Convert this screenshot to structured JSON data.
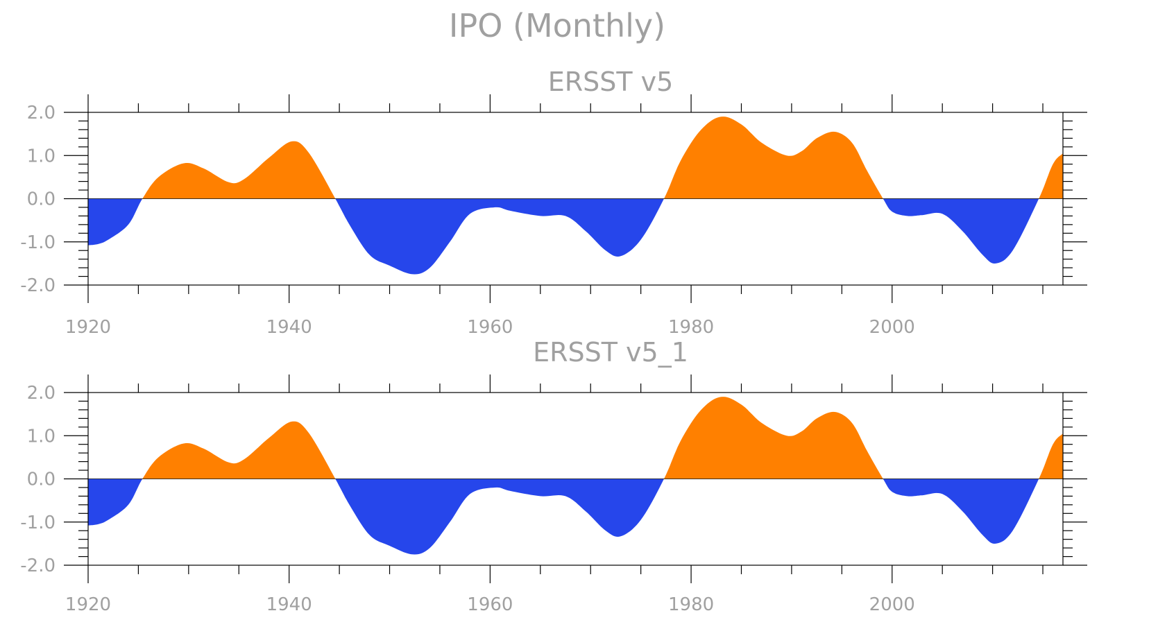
{
  "figure": {
    "title": "IPO (Monthly)"
  },
  "colors": {
    "positive": "#ff8000",
    "negative": "#2646eb",
    "frame": "#000000",
    "text": "#a0a0a0"
  },
  "chart_data": [
    {
      "type": "area",
      "title": "ERSST v5",
      "xlim": [
        1920,
        2017
      ],
      "ylim": [
        -2.0,
        2.0
      ],
      "xticks": [
        1920,
        1940,
        1960,
        1980,
        2000
      ],
      "xtick_labels": [
        "1920",
        "1940",
        "1960",
        "1980",
        "2000"
      ],
      "yticks": [
        2.0,
        1.0,
        0.0,
        -1.0,
        -2.0
      ],
      "ytick_labels": [
        "2.0",
        "1.0",
        "0.0",
        "-1.0",
        "-2.0"
      ],
      "grid": false,
      "fill": "positive orange / negative blue about 0",
      "x": [
        1920,
        1921,
        1922,
        1924,
        1925.4,
        1927,
        1929.5,
        1931.5,
        1934,
        1935.5,
        1938,
        1940.3,
        1942,
        1944.6,
        1946,
        1948,
        1950,
        1952.3,
        1954,
        1956,
        1958,
        1960.5,
        1962,
        1965,
        1967.5,
        1969.5,
        1971.5,
        1973,
        1975,
        1977.3,
        1979,
        1981,
        1983,
        1985,
        1987,
        1989.5,
        1991,
        1992.5,
        1994.3,
        1996,
        1997.5,
        1999.1,
        2000,
        2001.5,
        2003,
        2005,
        2007,
        2009,
        2010.3,
        2012,
        2014.6,
        2016,
        2017
      ],
      "y": [
        -1.08,
        -1.05,
        -0.95,
        -0.6,
        0.0,
        0.5,
        0.82,
        0.7,
        0.38,
        0.45,
        0.95,
        1.33,
        1.05,
        0.0,
        -0.6,
        -1.3,
        -1.55,
        -1.75,
        -1.6,
        -1.0,
        -0.35,
        -0.2,
        -0.28,
        -0.4,
        -0.4,
        -0.75,
        -1.2,
        -1.33,
        -0.95,
        0.0,
        0.9,
        1.6,
        1.9,
        1.72,
        1.3,
        1.0,
        1.1,
        1.4,
        1.55,
        1.3,
        0.65,
        0.0,
        -0.3,
        -0.4,
        -0.38,
        -0.35,
        -0.75,
        -1.3,
        -1.5,
        -1.2,
        0.0,
        0.8,
        1.05
      ]
    },
    {
      "type": "area",
      "title": "ERSST v5_1",
      "xlim": [
        1920,
        2017
      ],
      "ylim": [
        -2.0,
        2.0
      ],
      "xticks": [
        1920,
        1940,
        1960,
        1980,
        2000
      ],
      "xtick_labels": [
        "1920",
        "1940",
        "1960",
        "1980",
        "2000"
      ],
      "yticks": [
        2.0,
        1.0,
        0.0,
        -1.0,
        -2.0
      ],
      "ytick_labels": [
        "2.0",
        "1.0",
        "0.0",
        "-1.0",
        "-2.0"
      ],
      "grid": false,
      "fill": "positive orange / negative blue about 0",
      "x": [
        1920,
        1921,
        1922,
        1924,
        1925.4,
        1927,
        1929.5,
        1931.5,
        1934,
        1935.5,
        1938,
        1940.3,
        1942,
        1944.6,
        1946,
        1948,
        1950,
        1952.3,
        1954,
        1956,
        1958,
        1960.5,
        1962,
        1965,
        1967.5,
        1969.5,
        1971.5,
        1973,
        1975,
        1977.3,
        1979,
        1981,
        1983,
        1985,
        1987,
        1989.5,
        1991,
        1992.5,
        1994.3,
        1996,
        1997.5,
        1999.1,
        2000,
        2001.5,
        2003,
        2005,
        2007,
        2009,
        2010.3,
        2012,
        2014.6,
        2016,
        2017
      ],
      "y": [
        -1.08,
        -1.05,
        -0.95,
        -0.6,
        0.0,
        0.5,
        0.82,
        0.7,
        0.38,
        0.45,
        0.95,
        1.33,
        1.05,
        0.0,
        -0.6,
        -1.3,
        -1.55,
        -1.75,
        -1.6,
        -1.0,
        -0.35,
        -0.2,
        -0.28,
        -0.4,
        -0.4,
        -0.75,
        -1.2,
        -1.33,
        -0.95,
        0.0,
        0.9,
        1.6,
        1.9,
        1.72,
        1.3,
        1.0,
        1.1,
        1.4,
        1.55,
        1.3,
        0.65,
        0.0,
        -0.3,
        -0.4,
        -0.38,
        -0.35,
        -0.75,
        -1.3,
        -1.5,
        -1.2,
        0.0,
        0.8,
        1.05
      ]
    }
  ]
}
